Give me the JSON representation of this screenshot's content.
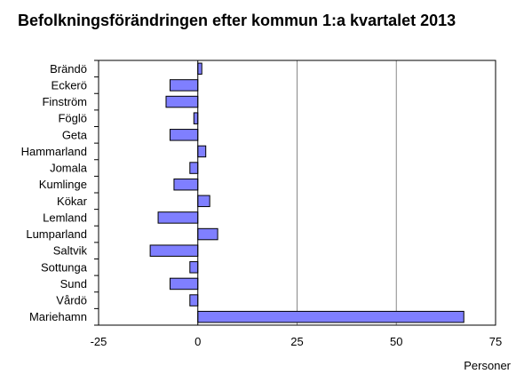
{
  "chart_data": {
    "type": "bar",
    "orientation": "horizontal",
    "title": "Befolkningsförändringen efter kommun 1:a kvartalet 2013",
    "xlabel": "Personer",
    "ylabel": "",
    "xlim": [
      -25,
      75
    ],
    "xticks": [
      "-25",
      "0",
      "25",
      "50",
      "75"
    ],
    "grid": true,
    "bar_color": "#7f7fff",
    "categories": [
      "Brändö",
      "Eckerö",
      "Finström",
      "Föglö",
      "Geta",
      "Hammarland",
      "Jomala",
      "Kumlinge",
      "Kökar",
      "Lemland",
      "Lumparland",
      "Saltvik",
      "Sottunga",
      "Sund",
      "Vårdö",
      "Mariehamn"
    ],
    "values": [
      1,
      -7,
      -8,
      -1,
      -7,
      2,
      -2,
      -6,
      3,
      -10,
      5,
      -12,
      -2,
      -7,
      -2,
      67
    ]
  }
}
